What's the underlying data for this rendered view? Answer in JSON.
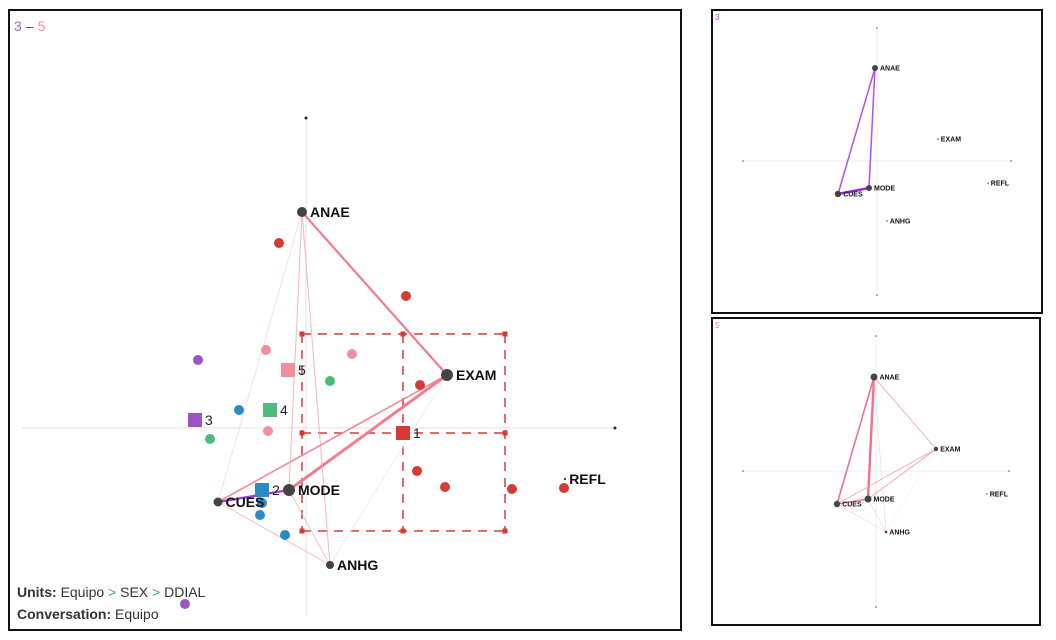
{
  "main": {
    "title_left": "3",
    "title_sep": "–",
    "title_right": "5",
    "colors": {
      "group3": "#a066c8",
      "group5": "#f08fa0"
    },
    "nodes": [
      "ANAE",
      "EXAM",
      "MODE",
      "CUES",
      "ANHG",
      "REFL"
    ],
    "means": [
      {
        "label": "1",
        "color": "#d63a35"
      },
      {
        "label": "2",
        "color": "#2a8bc4"
      },
      {
        "label": "3",
        "color": "#9b55c0"
      },
      {
        "label": "4",
        "color": "#4cba78"
      },
      {
        "label": "5",
        "color": "#f08fa0"
      }
    ],
    "units_label": "Units:",
    "units_path": [
      "Equipo",
      ">",
      "SEX",
      ">",
      "DDIAL"
    ],
    "conversation_label": "Conversation:",
    "conversation_value": "Equipo"
  },
  "panel_top": {
    "title": "3",
    "color": "#b050f0",
    "nodes": [
      "ANAE",
      "EXAM",
      "MODE",
      "CUES",
      "ANHG",
      "REFL"
    ]
  },
  "panel_bottom": {
    "title": "5",
    "color": "#f07090",
    "nodes": [
      "ANAE",
      "EXAM",
      "MODE",
      "CUES",
      "ANHG",
      "REFL"
    ]
  }
}
